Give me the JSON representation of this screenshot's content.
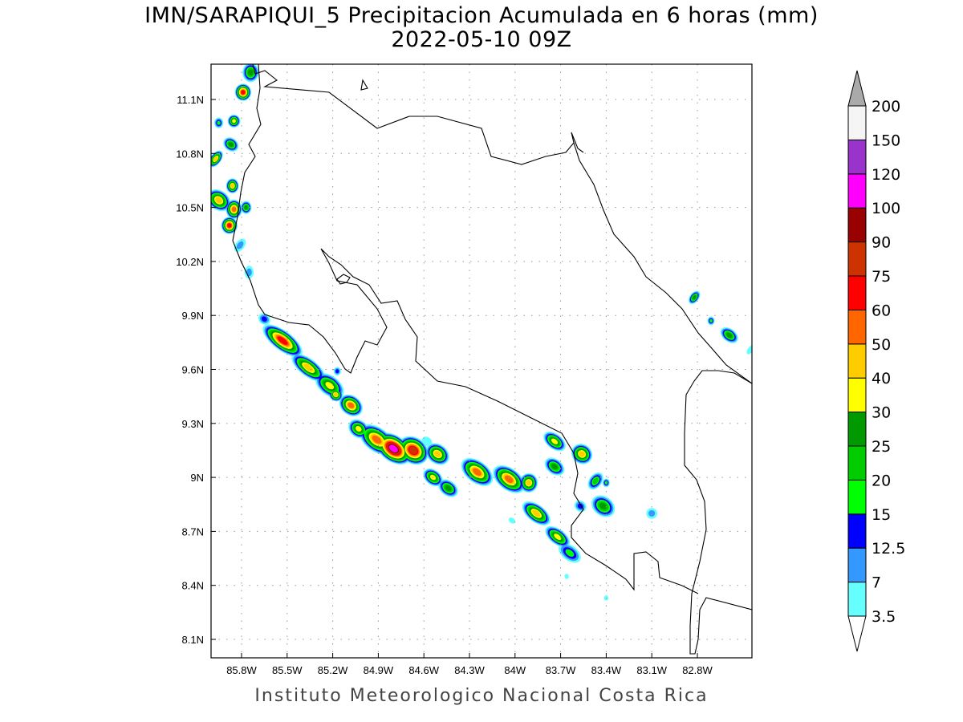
{
  "title_line1": "IMN/SARAPIQUI_5 Precipitacion Acumulada en 6 horas (mm)",
  "title_line2": "2022-05-10 09Z",
  "footer": "Instituto Meteorologico Nacional Costa Rica",
  "chart_data": {
    "type": "heatmap",
    "title": "IMN/SARAPIQUI_5 Precipitacion Acumulada en 6 horas (mm)",
    "subtitle": "2022-05-10 09Z",
    "xlim": [
      -86.0,
      -82.45
    ],
    "ylim": [
      8.0,
      11.3
    ],
    "grid": true,
    "x_ticks": [
      "85.8W",
      "85.5W",
      "85.2W",
      "84.9W",
      "84.6W",
      "84.3W",
      "84W",
      "83.7W",
      "83.4W",
      "83.1W",
      "82.8W"
    ],
    "x_tick_values": [
      -85.8,
      -85.5,
      -85.2,
      -84.9,
      -84.6,
      -84.3,
      -84.0,
      -83.7,
      -83.4,
      -83.1,
      -82.8
    ],
    "y_ticks": [
      "11.1N",
      "10.8N",
      "10.5N",
      "10.2N",
      "9.9N",
      "9.6N",
      "9.3N",
      "9N",
      "8.7N",
      "8.4N",
      "8.1N"
    ],
    "y_tick_values": [
      11.1,
      10.8,
      10.5,
      10.2,
      9.9,
      9.6,
      9.3,
      9.0,
      8.7,
      8.4,
      8.1
    ],
    "colorbar": {
      "labels": [
        "200",
        "150",
        "120",
        "100",
        "90",
        "75",
        "60",
        "50",
        "40",
        "30",
        "25",
        "20",
        "15",
        "12.5",
        "7",
        "3.5"
      ],
      "thresholds": [
        3.5,
        7,
        12.5,
        15,
        20,
        25,
        30,
        40,
        50,
        60,
        75,
        90,
        100,
        120,
        150,
        200
      ],
      "colors": [
        "#66ffff",
        "#3399ff",
        "#0000ff",
        "#00ff00",
        "#00cc00",
        "#009900",
        "#ffff00",
        "#ffcc00",
        "#ff6600",
        "#ff0000",
        "#cc3300",
        "#990000",
        "#ff00ff",
        "#9933cc",
        "#f5f5f5"
      ],
      "over_color": "#aaaaaa",
      "under_color": "#ffffff"
    },
    "rain_cells": [
      {
        "lon": -85.53,
        "lat": 9.76,
        "len": 0.13,
        "wid": 0.045,
        "peak": 60
      },
      {
        "lon": -85.36,
        "lat": 9.61,
        "len": 0.11,
        "wid": 0.04,
        "peak": 40
      },
      {
        "lon": -85.22,
        "lat": 9.51,
        "len": 0.09,
        "wid": 0.045,
        "peak": 30
      },
      {
        "lon": -85.18,
        "lat": 9.46,
        "len": 0.04,
        "wid": 0.03,
        "peak": 40
      },
      {
        "lon": -85.08,
        "lat": 9.4,
        "len": 0.07,
        "wid": 0.045,
        "peak": 50
      },
      {
        "lon": -85.03,
        "lat": 9.27,
        "len": 0.06,
        "wid": 0.04,
        "peak": 30
      },
      {
        "lon": -84.91,
        "lat": 9.21,
        "len": 0.11,
        "wid": 0.055,
        "peak": 50
      },
      {
        "lon": -84.8,
        "lat": 9.16,
        "len": 0.11,
        "wid": 0.06,
        "peak": 100
      },
      {
        "lon": -84.67,
        "lat": 9.15,
        "len": 0.09,
        "wid": 0.06,
        "peak": 75
      },
      {
        "lon": -84.51,
        "lat": 9.13,
        "len": 0.07,
        "wid": 0.045,
        "peak": 40
      },
      {
        "lon": -84.54,
        "lat": 9.0,
        "len": 0.06,
        "wid": 0.035,
        "peak": 30
      },
      {
        "lon": -84.44,
        "lat": 8.94,
        "len": 0.06,
        "wid": 0.035,
        "peak": 25
      },
      {
        "lon": -84.25,
        "lat": 9.03,
        "len": 0.1,
        "wid": 0.05,
        "peak": 50
      },
      {
        "lon": -84.04,
        "lat": 8.99,
        "len": 0.1,
        "wid": 0.05,
        "peak": 50
      },
      {
        "lon": -83.91,
        "lat": 8.97,
        "len": 0.05,
        "wid": 0.045,
        "peak": 40
      },
      {
        "lon": -83.86,
        "lat": 8.8,
        "len": 0.09,
        "wid": 0.04,
        "peak": 40
      },
      {
        "lon": -83.72,
        "lat": 8.67,
        "len": 0.08,
        "wid": 0.035,
        "peak": 30
      },
      {
        "lon": -83.64,
        "lat": 8.58,
        "len": 0.07,
        "wid": 0.035,
        "peak": 15
      },
      {
        "lon": -83.74,
        "lat": 9.2,
        "len": 0.07,
        "wid": 0.035,
        "peak": 30
      },
      {
        "lon": -83.56,
        "lat": 9.13,
        "len": 0.06,
        "wid": 0.045,
        "peak": 40
      },
      {
        "lon": -83.74,
        "lat": 9.06,
        "len": 0.06,
        "wid": 0.035,
        "peak": 25
      },
      {
        "lon": -83.47,
        "lat": 8.98,
        "len": 0.035,
        "wid": 0.045,
        "peak": 20
      },
      {
        "lon": -83.42,
        "lat": 8.84,
        "len": 0.07,
        "wid": 0.045,
        "peak": 25
      },
      {
        "lon": -83.4,
        "lat": 8.97,
        "len": 0.02,
        "wid": 0.02,
        "peak": 15
      },
      {
        "lon": -83.57,
        "lat": 8.84,
        "len": 0.035,
        "wid": 0.025,
        "peak": 12.5
      },
      {
        "lon": -85.79,
        "lat": 11.14,
        "len": 0.045,
        "wid": 0.04,
        "peak": 60
      },
      {
        "lon": -85.74,
        "lat": 11.25,
        "len": 0.045,
        "wid": 0.045,
        "peak": 25
      },
      {
        "lon": -85.95,
        "lat": 10.97,
        "len": 0.025,
        "wid": 0.025,
        "peak": 15
      },
      {
        "lon": -85.85,
        "lat": 10.98,
        "len": 0.035,
        "wid": 0.03,
        "peak": 30
      },
      {
        "lon": -85.87,
        "lat": 10.85,
        "len": 0.045,
        "wid": 0.03,
        "peak": 25
      },
      {
        "lon": -85.97,
        "lat": 10.77,
        "len": 0.03,
        "wid": 0.045,
        "peak": 40
      },
      {
        "lon": -85.86,
        "lat": 10.62,
        "len": 0.035,
        "wid": 0.035,
        "peak": 40
      },
      {
        "lon": -85.95,
        "lat": 10.54,
        "len": 0.07,
        "wid": 0.045,
        "peak": 40
      },
      {
        "lon": -85.85,
        "lat": 10.49,
        "len": 0.045,
        "wid": 0.045,
        "peak": 50
      },
      {
        "lon": -85.88,
        "lat": 10.4,
        "len": 0.045,
        "wid": 0.04,
        "peak": 60
      },
      {
        "lon": -85.77,
        "lat": 10.5,
        "len": 0.03,
        "wid": 0.03,
        "peak": 25
      },
      {
        "lon": -85.81,
        "lat": 10.29,
        "len": 0.025,
        "wid": 0.035,
        "peak": 7
      },
      {
        "lon": -85.75,
        "lat": 10.14,
        "len": 0.025,
        "wid": 0.03,
        "peak": 7
      },
      {
        "lon": -82.82,
        "lat": 10.0,
        "len": 0.025,
        "wid": 0.035,
        "peak": 25
      },
      {
        "lon": -82.71,
        "lat": 9.87,
        "len": 0.02,
        "wid": 0.02,
        "peak": 15
      },
      {
        "lon": -82.59,
        "lat": 9.79,
        "len": 0.055,
        "wid": 0.03,
        "peak": 25
      },
      {
        "lon": -82.45,
        "lat": 9.71,
        "len": 0.015,
        "wid": 0.025,
        "peak": 3.5
      },
      {
        "lon": -85.65,
        "lat": 9.88,
        "len": 0.035,
        "wid": 0.025,
        "peak": 12.5
      },
      {
        "lon": -85.17,
        "lat": 9.59,
        "len": 0.02,
        "wid": 0.02,
        "peak": 12.5
      },
      {
        "lon": -83.1,
        "lat": 8.8,
        "len": 0.03,
        "wid": 0.025,
        "peak": 7
      },
      {
        "lon": -83.4,
        "lat": 8.33,
        "len": 0.012,
        "wid": 0.012,
        "peak": 3.5
      },
      {
        "lon": -83.66,
        "lat": 8.45,
        "len": 0.012,
        "wid": 0.012,
        "peak": 3.5
      },
      {
        "lon": -84.58,
        "lat": 9.2,
        "len": 0.03,
        "wid": 0.02,
        "peak": 3.5
      },
      {
        "lon": -84.02,
        "lat": 8.76,
        "len": 0.02,
        "wid": 0.012,
        "peak": 3.5
      }
    ]
  }
}
